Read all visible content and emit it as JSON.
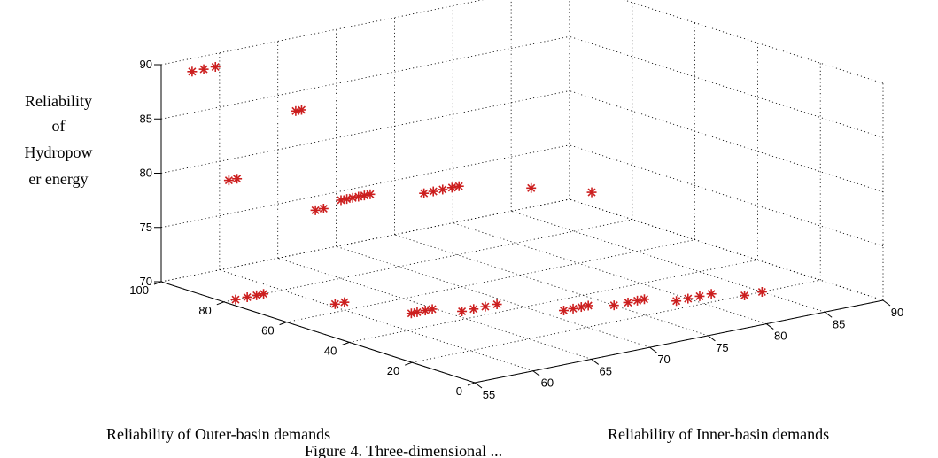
{
  "chart_data": {
    "type": "scatter3d",
    "title": "",
    "xlabel": "Reliability of Inner-basin demands",
    "ylabel": "Reliability of Outer-basin demands",
    "zlabel_lines": [
      "Reliability",
      "of",
      "Hydropow",
      "er energy"
    ],
    "caption": "Figure 4. Three-dimensional ...",
    "xlim": [
      55,
      90
    ],
    "ylim": [
      0,
      100
    ],
    "zlim": [
      70,
      90
    ],
    "x_ticks": [
      "55",
      "60",
      "65",
      "70",
      "75",
      "80",
      "85",
      "90"
    ],
    "y_ticks": [
      "0",
      "20",
      "40",
      "60",
      "80",
      "100"
    ],
    "z_ticks": [
      "70",
      "75",
      "80",
      "85",
      "90"
    ],
    "grid": true,
    "marker": "asterisk",
    "marker_color": "#cc1f1f",
    "points": [
      {
        "x": 55.5,
        "y": 92,
        "z": 90
      },
      {
        "x": 56.5,
        "y": 92,
        "z": 90
      },
      {
        "x": 57.5,
        "y": 92,
        "z": 90
      },
      {
        "x": 62.5,
        "y": 85,
        "z": 85.5
      },
      {
        "x": 63.0,
        "y": 85,
        "z": 85.5
      },
      {
        "x": 56.5,
        "y": 84,
        "z": 80.5
      },
      {
        "x": 57.2,
        "y": 84,
        "z": 80.5
      },
      {
        "x": 61.5,
        "y": 75,
        "z": 77.5
      },
      {
        "x": 62.2,
        "y": 75,
        "z": 77.5
      },
      {
        "x": 64.5,
        "y": 78,
        "z": 77.5
      },
      {
        "x": 65.0,
        "y": 78,
        "z": 77.5
      },
      {
        "x": 65.5,
        "y": 78,
        "z": 77.5
      },
      {
        "x": 66.0,
        "y": 78,
        "z": 77.5
      },
      {
        "x": 66.5,
        "y": 78,
        "z": 77.5
      },
      {
        "x": 67.0,
        "y": 78,
        "z": 77.5
      },
      {
        "x": 70.0,
        "y": 72,
        "z": 77.5
      },
      {
        "x": 70.8,
        "y": 72,
        "z": 77.5
      },
      {
        "x": 71.6,
        "y": 72,
        "z": 77.5
      },
      {
        "x": 72.4,
        "y": 72,
        "z": 77.5
      },
      {
        "x": 73.0,
        "y": 72,
        "z": 77.5
      },
      {
        "x": 76.5,
        "y": 62,
        "z": 77.5
      },
      {
        "x": 79.0,
        "y": 52,
        "z": 77.5
      },
      {
        "x": 56.0,
        "y": 80,
        "z": 70
      },
      {
        "x": 57.0,
        "y": 80,
        "z": 70
      },
      {
        "x": 57.8,
        "y": 80,
        "z": 70
      },
      {
        "x": 58.4,
        "y": 80,
        "z": 70
      },
      {
        "x": 60.5,
        "y": 65,
        "z": 70
      },
      {
        "x": 61.3,
        "y": 65,
        "z": 70
      },
      {
        "x": 63.0,
        "y": 50,
        "z": 70
      },
      {
        "x": 63.5,
        "y": 50,
        "z": 70
      },
      {
        "x": 64.2,
        "y": 50,
        "z": 70
      },
      {
        "x": 64.8,
        "y": 50,
        "z": 70
      },
      {
        "x": 66.0,
        "y": 45,
        "z": 70
      },
      {
        "x": 67.0,
        "y": 45,
        "z": 70
      },
      {
        "x": 68.0,
        "y": 45,
        "z": 70
      },
      {
        "x": 69.0,
        "y": 45,
        "z": 70
      },
      {
        "x": 71.5,
        "y": 33,
        "z": 70
      },
      {
        "x": 72.3,
        "y": 33,
        "z": 70
      },
      {
        "x": 73.0,
        "y": 33,
        "z": 70
      },
      {
        "x": 73.6,
        "y": 33,
        "z": 70
      },
      {
        "x": 75.0,
        "y": 30,
        "z": 70
      },
      {
        "x": 76.2,
        "y": 30,
        "z": 70
      },
      {
        "x": 77.0,
        "y": 30,
        "z": 70
      },
      {
        "x": 77.6,
        "y": 30,
        "z": 70
      },
      {
        "x": 79.0,
        "y": 25,
        "z": 70
      },
      {
        "x": 80.0,
        "y": 25,
        "z": 70
      },
      {
        "x": 81.0,
        "y": 25,
        "z": 70
      },
      {
        "x": 82.0,
        "y": 25,
        "z": 70
      },
      {
        "x": 83.5,
        "y": 20,
        "z": 70
      },
      {
        "x": 85.0,
        "y": 20,
        "z": 70
      }
    ]
  }
}
